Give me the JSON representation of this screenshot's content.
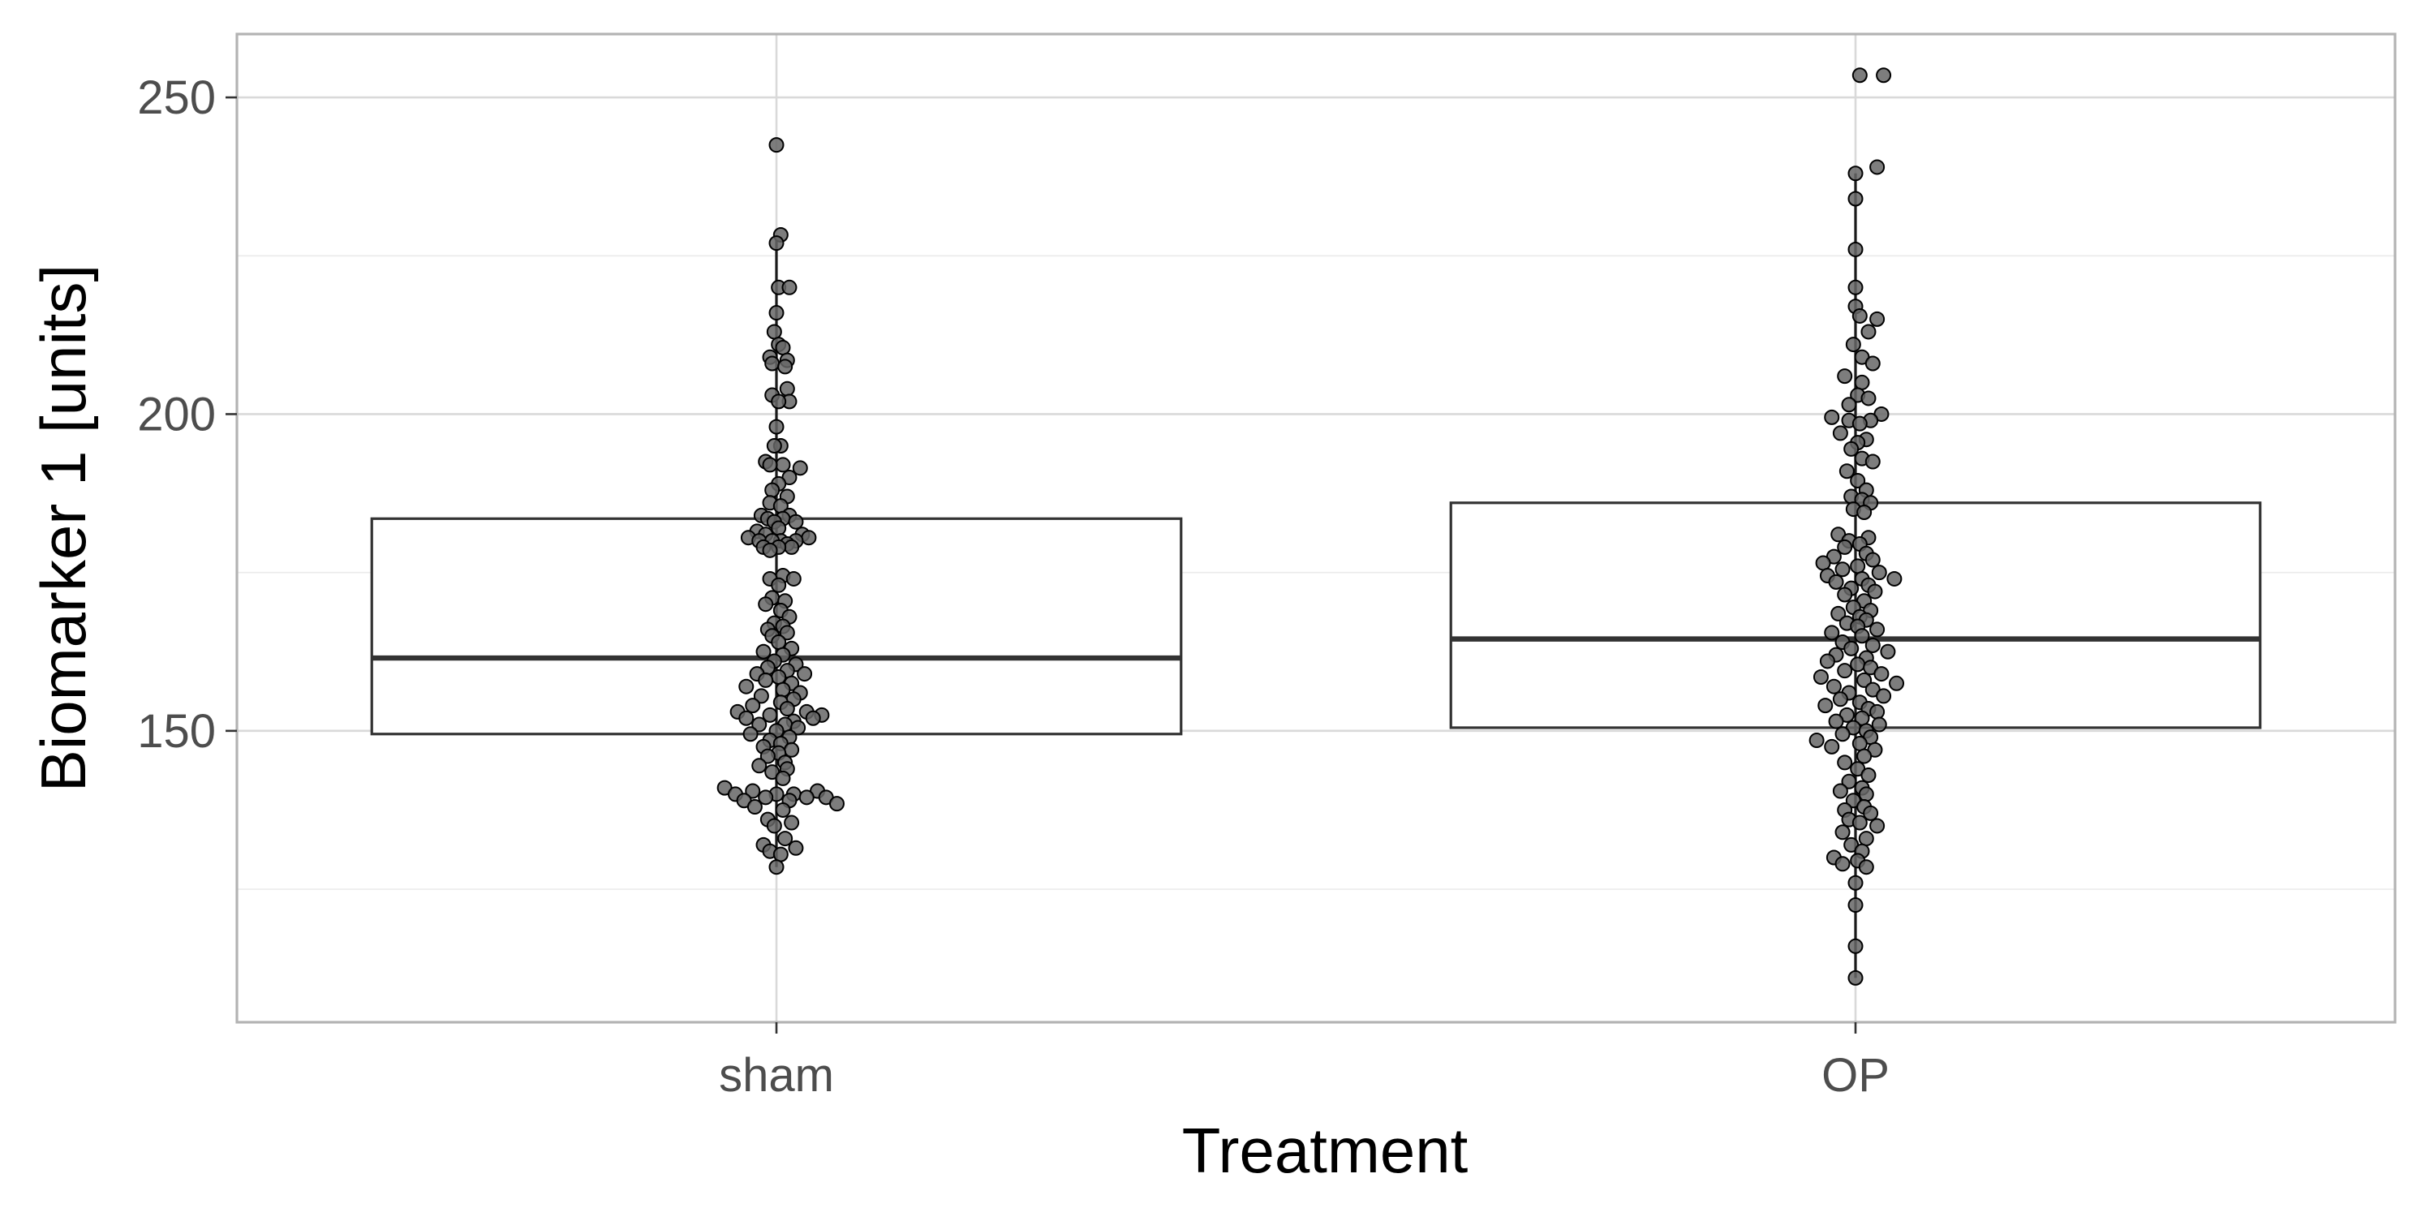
{
  "chart_data": {
    "type": "box",
    "xlabel": "Treatment",
    "ylabel": "Biomarker 1 [units]",
    "categories": [
      "sham",
      "OP"
    ],
    "ylim": [
      104,
      260
    ],
    "y_ticks": [
      150,
      200,
      250
    ],
    "y_minor_ticks": [
      125,
      175,
      225
    ],
    "grid": true,
    "legend": "none",
    "boxes": [
      {
        "category": "sham",
        "q1": 149.5,
        "median": 161.5,
        "q3": 183.5,
        "whisker_low": 128.5,
        "whisker_high": 227.5,
        "points": [
          242.5,
          228.3,
          227.0,
          220.0,
          220.0,
          216.0,
          213.0,
          211.0,
          210.5,
          209.0,
          208.5,
          208.0,
          207.5,
          204.0,
          203.0,
          202.0,
          202.0,
          198.0,
          195.0,
          195.0,
          192.5,
          192.0,
          192.0,
          191.5,
          190.0,
          189.0,
          188.0,
          187.0,
          186.0,
          185.5,
          184.0,
          184.0,
          183.5,
          183.5,
          183.0,
          183.0,
          182.0,
          181.5,
          181.0,
          181.0,
          180.5,
          180.5,
          180.0,
          180.0,
          180.0,
          180.0,
          179.5,
          179.0,
          179.0,
          179.0,
          178.5,
          174.5,
          174.0,
          174.0,
          173.0,
          171.0,
          170.5,
          170.0,
          169.0,
          168.0,
          167.0,
          166.5,
          166.0,
          165.5,
          165.0,
          164.0,
          163.0,
          162.5,
          162.0,
          161.0,
          160.5,
          160.0,
          159.5,
          159.0,
          159.0,
          158.5,
          158.0,
          157.5,
          157.0,
          156.5,
          156.0,
          155.5,
          155.0,
          154.5,
          154.0,
          153.5,
          153.0,
          153.0,
          152.5,
          152.5,
          152.0,
          152.0,
          151.5,
          151.0,
          151.0,
          150.5,
          150.0,
          149.5,
          149.0,
          148.5,
          148.0,
          147.5,
          147.0,
          146.5,
          146.0,
          145.0,
          144.5,
          144.0,
          143.5,
          142.5,
          141.0,
          140.5,
          140.5,
          140.0,
          140.0,
          140.0,
          139.5,
          139.5,
          139.5,
          139.0,
          139.0,
          138.5,
          138.0,
          137.5,
          136.0,
          135.5,
          135.0,
          133.0,
          132.0,
          131.5,
          131.0,
          130.5,
          128.5
        ],
        "point_offsets": [
          0,
          0.04,
          0,
          0.02,
          0.12,
          0,
          -0.02,
          0.02,
          0.06,
          -0.06,
          0.1,
          -0.04,
          0.08,
          0.1,
          -0.04,
          0.12,
          0.02,
          0,
          0.04,
          -0.02,
          -0.1,
          0.06,
          -0.06,
          0.22,
          0.12,
          0.02,
          -0.04,
          0.1,
          -0.06,
          0.04,
          -0.14,
          0.12,
          -0.08,
          0.06,
          -0.02,
          0.18,
          0.02,
          -0.18,
          0.24,
          -0.1,
          -0.26,
          0.3,
          -0.16,
          0.18,
          0.04,
          -0.04,
          0.1,
          -0.12,
          0.14,
          0.02,
          -0.06,
          0.06,
          -0.06,
          0.16,
          0.02,
          -0.04,
          0.08,
          -0.1,
          0.04,
          0.12,
          -0.02,
          0.06,
          -0.08,
          0.1,
          -0.04,
          0.02,
          0.14,
          -0.12,
          0.06,
          -0.02,
          0.18,
          -0.08,
          0.1,
          0.26,
          -0.18,
          0.02,
          -0.1,
          0.14,
          -0.28,
          0.06,
          0.22,
          -0.14,
          0.16,
          0.04,
          -0.22,
          0.1,
          -0.36,
          0.28,
          0.42,
          -0.06,
          0.34,
          -0.28,
          0.16,
          -0.16,
          0.08,
          0.2,
          0.0,
          -0.24,
          0.12,
          -0.06,
          0.04,
          -0.12,
          0.14,
          0.02,
          -0.08,
          0.08,
          -0.16,
          0.1,
          -0.04,
          0.06,
          -0.48,
          0.38,
          -0.22,
          0.0,
          0.16,
          -0.38,
          0.28,
          0.46,
          -0.1,
          -0.3,
          0.12,
          0.56,
          -0.2,
          0.06,
          -0.08,
          0.14,
          -0.02,
          0.08,
          -0.12,
          0.18,
          -0.06,
          0.04,
          0.0
        ]
      },
      {
        "category": "OP",
        "q1": 150.5,
        "median": 164.5,
        "q3": 186.0,
        "whisker_low": 111.0,
        "whisker_high": 238.0,
        "points": [
          253.5,
          253.5,
          239.0,
          238.0,
          234.0,
          226.0,
          220.0,
          217.0,
          215.5,
          215.0,
          213.0,
          211.0,
          209.0,
          208.0,
          206.0,
          205.0,
          203.0,
          202.5,
          201.5,
          200.0,
          199.5,
          199.0,
          199.0,
          198.5,
          197.0,
          196.0,
          195.5,
          194.5,
          193.0,
          192.5,
          191.0,
          189.5,
          188.0,
          187.0,
          186.5,
          186.0,
          185.0,
          184.5,
          181.0,
          180.5,
          180.0,
          179.5,
          179.0,
          178.0,
          177.5,
          177.0,
          176.5,
          176.0,
          175.5,
          175.0,
          174.5,
          174.0,
          174.0,
          173.5,
          173.0,
          172.5,
          172.0,
          171.5,
          170.5,
          169.5,
          169.0,
          168.5,
          168.0,
          167.5,
          167.0,
          166.5,
          166.0,
          165.5,
          165.0,
          164.0,
          163.5,
          163.0,
          162.5,
          162.0,
          161.5,
          161.0,
          160.5,
          160.0,
          159.5,
          159.0,
          158.5,
          158.0,
          157.5,
          157.0,
          156.5,
          156.0,
          155.5,
          155.0,
          154.5,
          154.0,
          153.5,
          153.0,
          152.5,
          152.0,
          151.5,
          151.0,
          150.5,
          150.0,
          149.5,
          149.0,
          148.5,
          148.0,
          147.5,
          147.0,
          146.0,
          145.0,
          144.0,
          143.0,
          142.0,
          141.0,
          140.5,
          140.0,
          139.0,
          138.0,
          137.5,
          137.0,
          136.0,
          135.5,
          135.0,
          134.0,
          133.0,
          132.0,
          131.0,
          130.0,
          129.5,
          129.0,
          128.5,
          126.0,
          122.5,
          116.0,
          111.0
        ],
        "point_offsets": [
          0.04,
          0.26,
          0.2,
          0.0,
          0.0,
          0.0,
          0.0,
          0.0,
          0.04,
          0.2,
          0.12,
          -0.02,
          0.06,
          0.16,
          -0.1,
          0.06,
          0.02,
          0.12,
          -0.06,
          0.24,
          -0.22,
          0.14,
          -0.06,
          0.04,
          -0.14,
          0.1,
          0.02,
          -0.04,
          0.06,
          0.16,
          -0.08,
          0.02,
          0.1,
          -0.04,
          0.06,
          0.14,
          -0.02,
          0.08,
          -0.16,
          0.12,
          -0.06,
          0.04,
          -0.1,
          0.1,
          -0.2,
          0.16,
          -0.3,
          0.02,
          -0.12,
          0.22,
          -0.26,
          0.06,
          0.36,
          -0.18,
          0.12,
          -0.04,
          0.18,
          -0.1,
          0.08,
          -0.02,
          0.14,
          -0.16,
          0.04,
          0.1,
          -0.08,
          0.02,
          0.2,
          -0.22,
          0.06,
          -0.12,
          0.16,
          -0.04,
          0.3,
          -0.18,
          0.1,
          -0.26,
          0.02,
          0.14,
          -0.1,
          0.24,
          -0.32,
          0.08,
          0.38,
          -0.2,
          0.16,
          -0.06,
          0.26,
          -0.14,
          0.04,
          -0.28,
          0.12,
          0.2,
          -0.08,
          0.06,
          -0.18,
          0.22,
          -0.02,
          0.1,
          -0.12,
          0.14,
          -0.36,
          0.04,
          -0.22,
          0.18,
          0.08,
          -0.1,
          0.02,
          0.12,
          -0.06,
          0.06,
          -0.14,
          0.1,
          -0.02,
          0.08,
          -0.1,
          0.14,
          -0.06,
          0.04,
          0.2,
          -0.12,
          0.1,
          -0.04,
          0.06,
          -0.2,
          0.02,
          -0.12,
          0.1,
          0.0,
          0.0,
          0.0,
          0.0
        ]
      }
    ]
  }
}
